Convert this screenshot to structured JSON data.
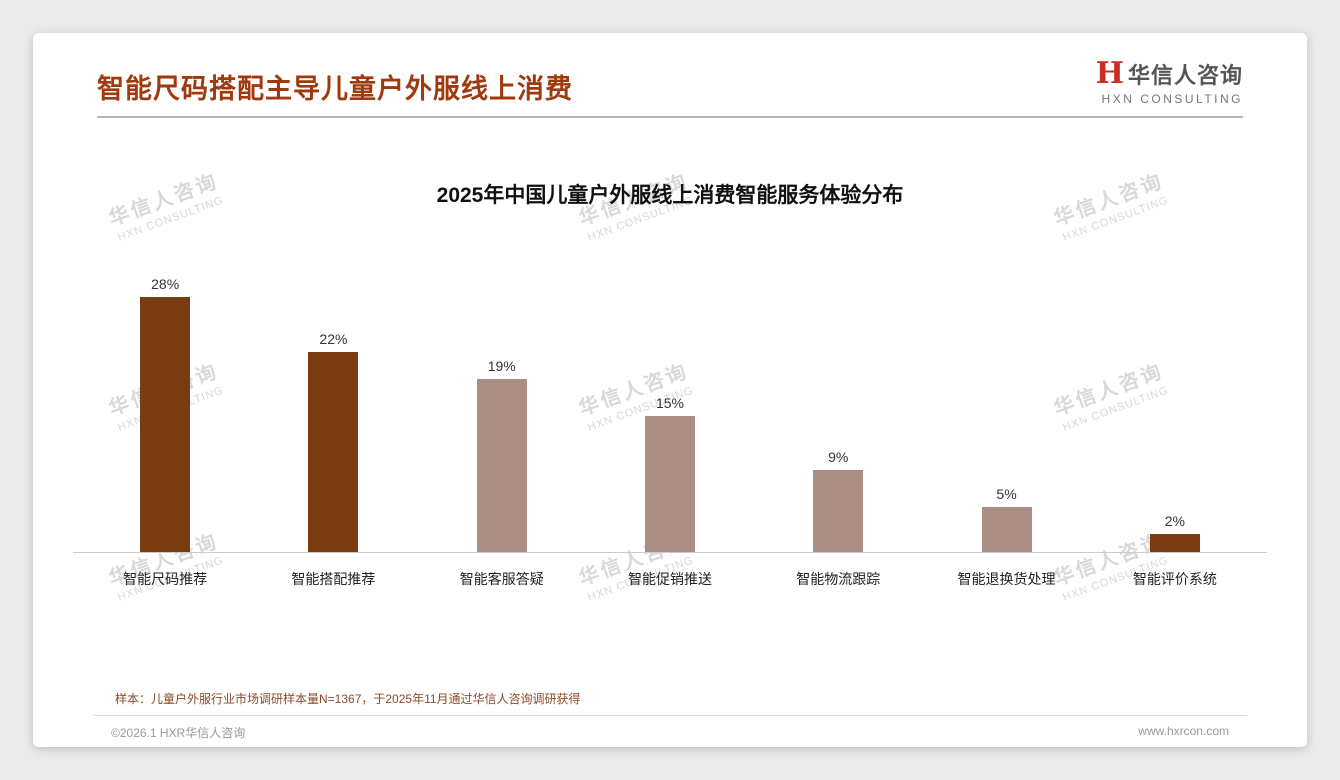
{
  "header": {
    "title": "智能尺码搭配主导儿童户外服线上消费",
    "logo": {
      "mark": "H",
      "name": "华信人咨询",
      "sub": "HXN CONSULTING"
    }
  },
  "watermark": {
    "line1": "华信人咨询",
    "line2": "HXN CONSULTING"
  },
  "chart_data": {
    "type": "bar",
    "title": "2025年中国儿童户外服线上消费智能服务体验分布",
    "categories": [
      "智能尺码推荐",
      "智能搭配推荐",
      "智能客服答疑",
      "智能促销推送",
      "智能物流跟踪",
      "智能退换货处理",
      "智能评价系统"
    ],
    "values": [
      28,
      22,
      19,
      15,
      9,
      5,
      2
    ],
    "value_labels": [
      "28%",
      "22%",
      "19%",
      "15%",
      "9%",
      "5%",
      "2%"
    ],
    "bar_colors": [
      "#7a3b10",
      "#7a3b10",
      "#ab8d85",
      "#ab8d85",
      "#ab8d85",
      "#ab8d85",
      "#7a3b10"
    ],
    "xlabel": "",
    "ylabel": "",
    "ylim": [
      0,
      30
    ],
    "grid": false,
    "legend": null
  },
  "footer": {
    "note": "样本：儿童户外服行业市场调研样本量N=1367，于2025年11月通过华信人咨询调研获得",
    "copyright": "©2026.1 HXR华信人咨询",
    "website": "www.hxrcon.com"
  }
}
